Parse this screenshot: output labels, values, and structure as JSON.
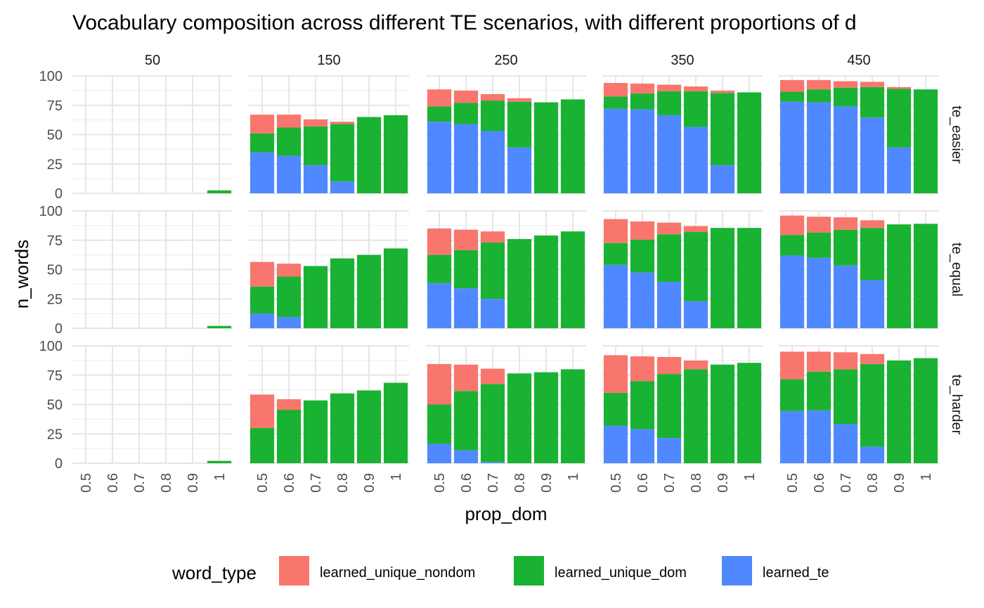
{
  "chart_data": {
    "type": "bar",
    "stacked": true,
    "faceted": true,
    "title": "Vocabulary composition across different TE scenarios, with different proportions of d",
    "xlabel": "prop_dom",
    "ylabel": "n_words",
    "x": [
      "0.5",
      "0.6",
      "0.7",
      "0.8",
      "0.9",
      "1"
    ],
    "ylim": [
      0,
      100
    ],
    "yticks": [
      "0",
      "25",
      "50",
      "75",
      "100"
    ],
    "grid": true,
    "legend": {
      "title": "word_type",
      "position": "bottom",
      "entries": [
        "learned_unique_nondom",
        "learned_unique_dom",
        "learned_te"
      ]
    },
    "colors": {
      "learned_unique_nondom": "#F8766D",
      "learned_unique_dom": "#1AB232",
      "learned_te": "#5089FF"
    },
    "col_facets": [
      "50",
      "150",
      "250",
      "350",
      "450"
    ],
    "row_facets": [
      "te_easier",
      "te_equal",
      "te_harder"
    ],
    "stack_order": [
      "learned_te",
      "learned_unique_dom",
      "learned_unique_nondom"
    ],
    "panels": {
      "te_easier": {
        "50": {
          "learned_te": [
            0,
            0,
            0,
            0,
            0,
            0
          ],
          "learned_unique_dom": [
            0,
            0,
            0,
            0,
            0,
            2.5
          ],
          "learned_unique_nondom": [
            0,
            0,
            0,
            0,
            0,
            0
          ]
        },
        "150": {
          "learned_te": [
            35,
            32,
            24,
            10,
            0,
            0
          ],
          "learned_unique_dom": [
            16,
            24,
            33,
            49,
            65,
            66.5
          ],
          "learned_unique_nondom": [
            16,
            11,
            6,
            2,
            0,
            0
          ]
        },
        "250": {
          "learned_te": [
            61,
            59,
            53,
            39,
            0,
            0
          ],
          "learned_unique_dom": [
            13,
            18,
            26,
            39,
            77.5,
            80
          ],
          "learned_unique_nondom": [
            14.5,
            10.5,
            5.5,
            3,
            0,
            0
          ]
        },
        "350": {
          "learned_te": [
            72,
            71.5,
            66.5,
            56.5,
            24,
            0
          ],
          "learned_unique_dom": [
            10.5,
            13.5,
            20.5,
            30.5,
            61.5,
            86
          ],
          "learned_unique_nondom": [
            11.5,
            8.5,
            5.5,
            4,
            2,
            0
          ]
        },
        "450": {
          "learned_te": [
            78,
            77.5,
            74,
            64.5,
            39,
            0
          ],
          "learned_unique_dom": [
            8.5,
            11,
            16,
            26,
            50,
            88.5
          ],
          "learned_unique_nondom": [
            10,
            8,
            5.5,
            4.5,
            1.5,
            0
          ]
        }
      },
      "te_equal": {
        "50": {
          "learned_te": [
            0,
            0,
            0,
            0,
            0,
            0
          ],
          "learned_unique_dom": [
            0,
            0,
            0,
            0,
            0,
            2
          ],
          "learned_unique_nondom": [
            0,
            0,
            0,
            0,
            0,
            0
          ]
        },
        "150": {
          "learned_te": [
            12.5,
            9.5,
            0,
            0,
            0,
            0
          ],
          "learned_unique_dom": [
            23,
            34.5,
            53,
            59.5,
            62.5,
            68
          ],
          "learned_unique_nondom": [
            21,
            11,
            0,
            0,
            0,
            0
          ]
        },
        "250": {
          "learned_te": [
            38.5,
            34,
            25,
            0,
            0,
            0
          ],
          "learned_unique_dom": [
            24,
            32.5,
            48,
            76,
            79,
            82.5
          ],
          "learned_unique_nondom": [
            22.5,
            17.5,
            9.5,
            0,
            0,
            0
          ]
        },
        "350": {
          "learned_te": [
            54,
            47.5,
            39.5,
            23,
            0,
            0
          ],
          "learned_unique_dom": [
            18.5,
            28,
            40.5,
            59,
            85.5,
            85.5
          ],
          "learned_unique_nondom": [
            20.5,
            15.5,
            10,
            5,
            0,
            0
          ]
        },
        "450": {
          "learned_te": [
            62,
            60,
            53.5,
            41,
            0,
            0
          ],
          "learned_unique_dom": [
            17.5,
            21.5,
            30.5,
            44.5,
            88.5,
            89
          ],
          "learned_unique_nondom": [
            16.5,
            13.5,
            10.5,
            6.5,
            0,
            0
          ]
        }
      },
      "te_harder": {
        "50": {
          "learned_te": [
            0,
            0,
            0,
            0,
            0,
            0
          ],
          "learned_unique_dom": [
            0,
            0,
            0,
            0,
            0,
            2
          ],
          "learned_unique_nondom": [
            0,
            0,
            0,
            0,
            0,
            0
          ]
        },
        "150": {
          "learned_te": [
            0,
            0,
            0,
            0,
            0,
            0
          ],
          "learned_unique_dom": [
            30,
            45.5,
            53.5,
            59.5,
            62,
            68.5
          ],
          "learned_unique_nondom": [
            28.5,
            9,
            0,
            0,
            0,
            0
          ]
        },
        "250": {
          "learned_te": [
            16.5,
            11,
            1,
            0,
            0,
            0
          ],
          "learned_unique_dom": [
            33.5,
            50.5,
            66.5,
            76.5,
            77.5,
            80
          ],
          "learned_unique_nondom": [
            34.5,
            22.5,
            13,
            0,
            0,
            0
          ]
        },
        "350": {
          "learned_te": [
            32,
            29,
            21.5,
            0,
            0,
            0
          ],
          "learned_unique_dom": [
            28,
            41,
            54.5,
            80,
            84,
            85.5
          ],
          "learned_unique_nondom": [
            32,
            21,
            14.5,
            7.5,
            0,
            0
          ]
        },
        "450": {
          "learned_te": [
            44.5,
            45,
            33.5,
            14,
            0,
            0
          ],
          "learned_unique_dom": [
            27,
            33,
            46.5,
            70.5,
            87.5,
            89.5
          ],
          "learned_unique_nondom": [
            23.5,
            17,
            14.5,
            8.5,
            0,
            0
          ]
        }
      }
    }
  }
}
